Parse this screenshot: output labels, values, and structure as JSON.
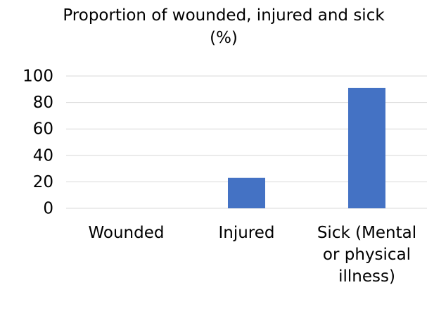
{
  "chart_data": {
    "type": "bar",
    "title": "Proportion of wounded, injured and sick (%)",
    "categories": [
      "Wounded",
      "Injured",
      "Sick (Mental or physical illness)"
    ],
    "values": [
      0,
      23,
      91
    ],
    "color": "#4472c4",
    "ylim": [
      0,
      100
    ],
    "yticks": [
      0,
      20,
      40,
      60,
      80,
      100
    ],
    "grid": true
  }
}
